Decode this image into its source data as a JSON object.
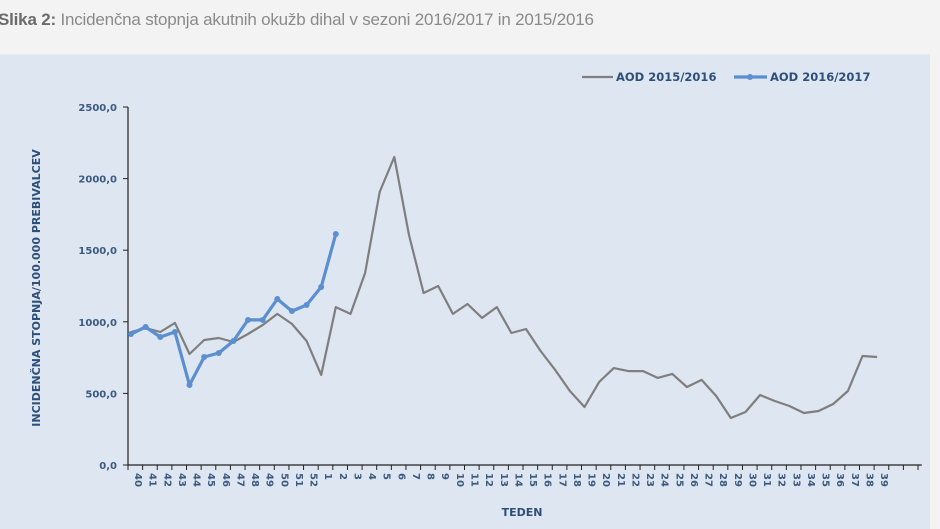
{
  "caption": {
    "label": "Slika 2:",
    "text": " Incidenčna stopnja akutnih okužb dihal v sezoni 2016/2017 in 2015/2016"
  },
  "colors": {
    "series_2015_2016": "#7f7f7f",
    "series_2016_2017": "#5b8fd0",
    "panel_bg": "#dde6f1",
    "axis_text": "#3d5a80"
  },
  "chart_data": {
    "type": "line",
    "title": "Incidenčna stopnja akutnih okužb dihal v sezoni 2016/2017 in 2015/2016",
    "xlabel": "TEDEN",
    "ylabel": "INCIDENČNA STOPNJA/100.000 PREBIVALCEV",
    "ylim": [
      0,
      2500
    ],
    "yticks": [
      "0,0",
      "500,0",
      "1000,0",
      "1500,0",
      "2000,0",
      "2500,0"
    ],
    "grid": false,
    "legend_position": "top-right",
    "categories": [
      "40",
      "41",
      "42",
      "43",
      "44",
      "45",
      "46",
      "47",
      "48",
      "49",
      "50",
      "51",
      "52",
      "1",
      "2",
      "3",
      "4",
      "5",
      "6",
      "7",
      "8",
      "9",
      "10",
      "11",
      "12",
      "13",
      "14",
      "15",
      "16",
      "17",
      "18",
      "19",
      "20",
      "21",
      "22",
      "23",
      "24",
      "25",
      "26",
      "27",
      "28",
      "29",
      "30",
      "31",
      "32",
      "33",
      "34",
      "35",
      "36",
      "37",
      "38",
      "39"
    ],
    "series": [
      {
        "name": "AOD 2015/2016",
        "markers": false,
        "values": [
          929,
          957,
          929,
          992,
          775,
          873,
          887,
          859,
          915,
          978,
          1055,
          985,
          866,
          629,
          1103,
          1055,
          1341,
          1907,
          2151,
          1606,
          1201,
          1250,
          1055,
          1124,
          1027,
          1103,
          922,
          950,
          796,
          663,
          517,
          405,
          580,
          677,
          656,
          656,
          608,
          636,
          545,
          594,
          482,
          328,
          370,
          489,
          447,
          412,
          363,
          377,
          426,
          517,
          761,
          754
        ]
      },
      {
        "name": "AOD 2016/2017",
        "markers": true,
        "values": [
          915,
          964,
          894,
          929,
          559,
          754,
          782,
          866,
          1013,
          1013,
          1159,
          1075,
          1117,
          1243,
          1613
        ]
      }
    ]
  }
}
